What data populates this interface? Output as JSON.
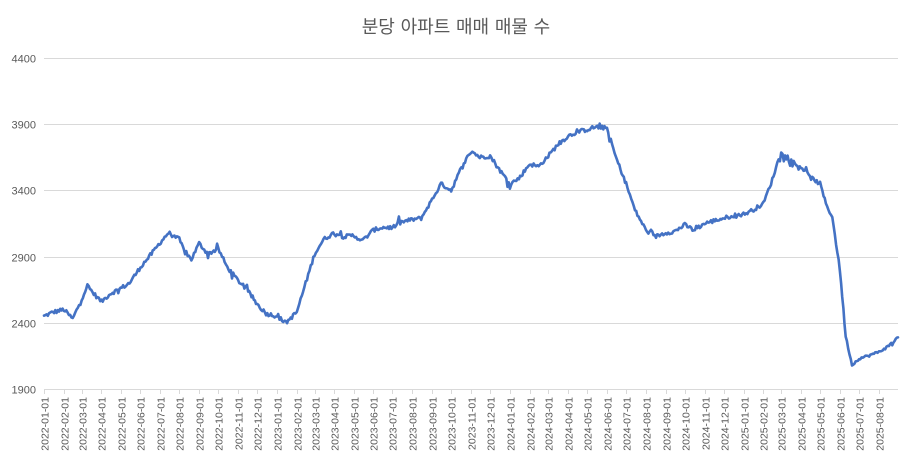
{
  "chart_data": {
    "type": "line",
    "title": "분당 아파트 매매 매물 수",
    "xlabel": "",
    "ylabel": "",
    "ylim": [
      1900,
      4400
    ],
    "yticks": [
      1900,
      2400,
      2900,
      3400,
      3900,
      4400
    ],
    "xlim": [
      "2022-01-01",
      "2025-08-31"
    ],
    "grid": true,
    "legend": "none",
    "line_color": "#4472c4",
    "xticks": [
      "2022-01-01",
      "2022-02-01",
      "2022-03-01",
      "2022-04-01",
      "2022-05-01",
      "2022-06-01",
      "2022-07-01",
      "2022-08-01",
      "2022-09-01",
      "2022-10-01",
      "2022-11-01",
      "2022-12-01",
      "2023-01-01",
      "2023-02-01",
      "2023-03-01",
      "2023-04-01",
      "2023-05-01",
      "2023-06-01",
      "2023-07-01",
      "2023-08-01",
      "2023-09-01",
      "2023-10-01",
      "2023-11-01",
      "2023-12-01",
      "2024-01-01",
      "2024-02-01",
      "2024-03-01",
      "2024-04-01",
      "2024-05-01",
      "2024-06-01",
      "2024-07-01",
      "2024-08-01",
      "2024-09-01",
      "2024-10-01",
      "2024-11-01",
      "2024-12-01",
      "2025-01-01",
      "2025-02-01",
      "2025-03-01",
      "2025-04-01",
      "2025-05-01",
      "2025-06-01",
      "2025-07-01",
      "2025-08-01"
    ],
    "series": [
      {
        "x": [
          "2022-01-01",
          "2022-01-15",
          "2022-02-01",
          "2022-02-15",
          "2022-03-01",
          "2022-03-10",
          "2022-03-20",
          "2022-04-01",
          "2022-04-15",
          "2022-05-01",
          "2022-05-15",
          "2022-06-01",
          "2022-06-15",
          "2022-07-01",
          "2022-07-15",
          "2022-08-01",
          "2022-08-10",
          "2022-08-20",
          "2022-09-01",
          "2022-09-15",
          "2022-10-01",
          "2022-10-15",
          "2022-11-01",
          "2022-11-15",
          "2022-12-01",
          "2022-12-15",
          "2023-01-01",
          "2023-01-15",
          "2023-02-01",
          "2023-02-15",
          "2023-03-01",
          "2023-03-15",
          "2023-04-01",
          "2023-04-15",
          "2023-05-01",
          "2023-05-15",
          "2023-06-01",
          "2023-06-15",
          "2023-07-01",
          "2023-07-15",
          "2023-08-01",
          "2023-08-15",
          "2023-09-01",
          "2023-09-15",
          "2023-10-01",
          "2023-10-15",
          "2023-11-01",
          "2023-11-15",
          "2023-12-01",
          "2023-12-15",
          "2024-01-01",
          "2024-01-15",
          "2024-02-01",
          "2024-02-15",
          "2024-03-01",
          "2024-03-15",
          "2024-04-01",
          "2024-04-15",
          "2024-05-01",
          "2024-05-15",
          "2024-06-01",
          "2024-06-15",
          "2024-07-01",
          "2024-07-15",
          "2024-08-01",
          "2024-08-15",
          "2024-09-01",
          "2024-09-15",
          "2024-10-01",
          "2024-10-15",
          "2024-11-01",
          "2024-11-15",
          "2024-12-01",
          "2024-12-15",
          "2025-01-01",
          "2025-01-15",
          "2025-02-01",
          "2025-02-15",
          "2025-03-01",
          "2025-03-15",
          "2025-04-01",
          "2025-04-15",
          "2025-05-01",
          "2025-05-10",
          "2025-05-20",
          "2025-06-01",
          "2025-06-10",
          "2025-06-20",
          "2025-07-01",
          "2025-07-15",
          "2025-08-01",
          "2025-08-15",
          "2025-08-31"
        ],
        "values": [
          2450,
          2480,
          2500,
          2430,
          2580,
          2680,
          2620,
          2560,
          2620,
          2660,
          2700,
          2820,
          2900,
          3000,
          3080,
          3030,
          2930,
          2880,
          3000,
          2920,
          2960,
          2820,
          2720,
          2650,
          2540,
          2470,
          2450,
          2400,
          2480,
          2700,
          2920,
          3030,
          3080,
          3050,
          3060,
          3020,
          3100,
          3120,
          3120,
          3160,
          3180,
          3190,
          3330,
          3450,
          3400,
          3550,
          3700,
          3650,
          3660,
          3560,
          3450,
          3490,
          3600,
          3580,
          3660,
          3740,
          3810,
          3840,
          3860,
          3880,
          3870,
          3650,
          3450,
          3250,
          3100,
          3050,
          3080,
          3090,
          3140,
          3100,
          3150,
          3170,
          3190,
          3210,
          3220,
          3250,
          3300,
          3480,
          3700,
          3600,
          3580,
          3500,
          3450,
          3300,
          3200,
          2800,
          2300,
          2080,
          2130,
          2150,
          2180,
          2220,
          2290
        ]
      }
    ]
  }
}
